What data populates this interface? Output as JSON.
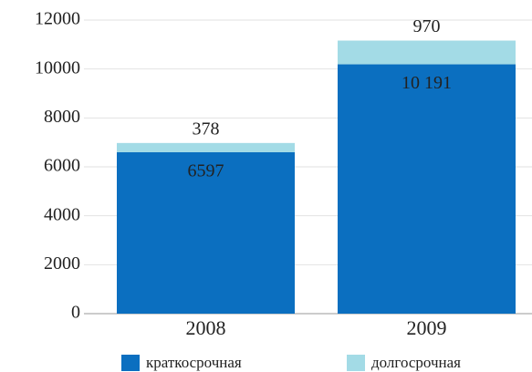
{
  "chart_data": {
    "type": "stacked-bar",
    "categories": [
      "2008",
      "2009"
    ],
    "series": [
      {
        "name": "краткосрочная",
        "color": "#0b6fc0",
        "values": [
          6597,
          10191
        ],
        "value_labels": [
          "6597",
          "10 191"
        ]
      },
      {
        "name": "долгосрочная",
        "color": "#a3dbe6",
        "values": [
          378,
          970
        ]
      }
    ],
    "ylim": [
      0,
      12000
    ],
    "yticks": [
      0,
      2000,
      4000,
      6000,
      8000,
      10000,
      12000
    ],
    "grid": true
  }
}
